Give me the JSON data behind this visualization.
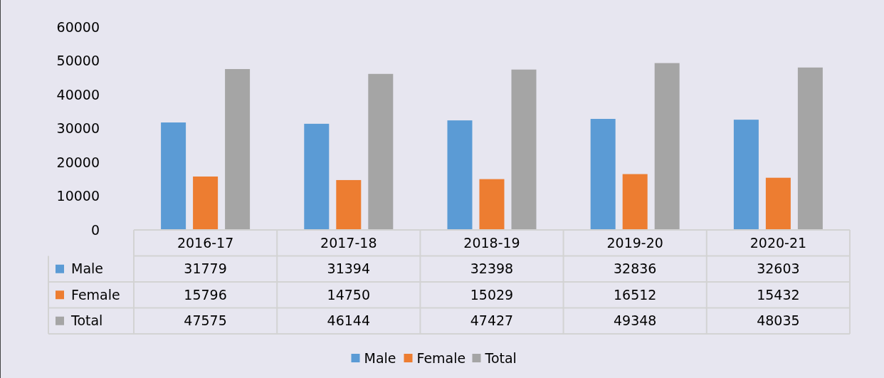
{
  "chart_data": {
    "type": "bar",
    "categories": [
      "2016-17",
      "2017-18",
      "2018-19",
      "2019-20",
      "2020-21"
    ],
    "series": [
      {
        "name": "Male",
        "color": "#5b9bd5",
        "values": [
          31779,
          31394,
          32398,
          32836,
          32603
        ]
      },
      {
        "name": "Female",
        "color": "#ed7d31",
        "values": [
          15796,
          14750,
          15029,
          16512,
          15432
        ]
      },
      {
        "name": "Total",
        "color": "#a5a5a5",
        "values": [
          47575,
          46144,
          47427,
          49348,
          48035
        ]
      }
    ],
    "ylim": [
      0,
      60000
    ],
    "yticks": [
      0,
      10000,
      20000,
      30000,
      40000,
      50000,
      60000
    ],
    "data_labels": true,
    "legend": "bottom",
    "grid": false
  }
}
